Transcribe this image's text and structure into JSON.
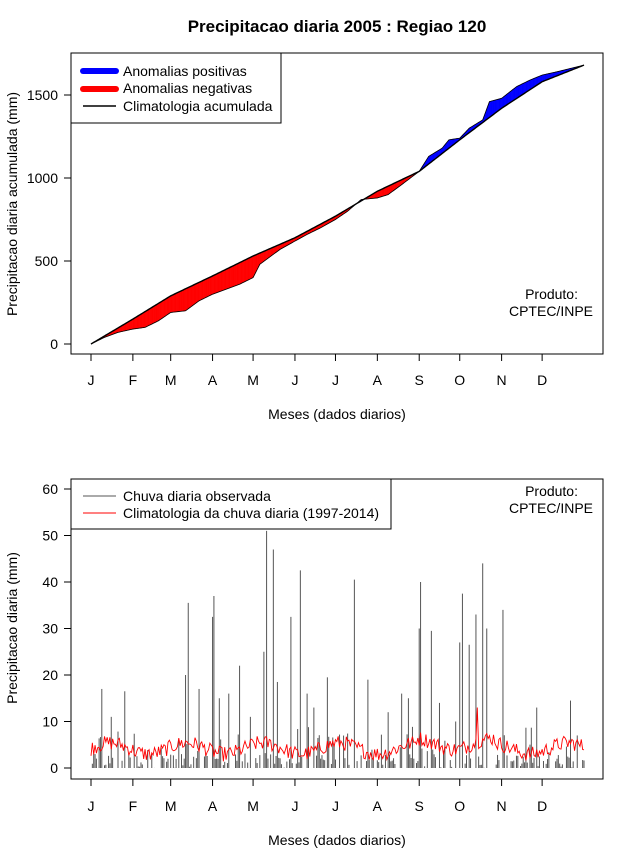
{
  "chart_data": [
    {
      "type": "area",
      "title": "Precipitacao diaria 2005 : Regiao 120",
      "xlabel": "Meses (dados diarios)",
      "ylabel": "Precipitacao diaria acumulada (mm)",
      "xlim": [
        0,
        365
      ],
      "ylim": [
        -50,
        1750
      ],
      "yticks": [
        0,
        500,
        1000,
        1500
      ],
      "month_ticks": [
        "J",
        "F",
        "M",
        "A",
        "M",
        "J",
        "J",
        "A",
        "S",
        "O",
        "N",
        "D"
      ],
      "legend_position": "top-left",
      "legend": [
        {
          "label": "Anomalias positivas",
          "color": "#0000ff",
          "kind": "fill"
        },
        {
          "label": "Anomalias negativas",
          "color": "#ff0000",
          "kind": "fill"
        },
        {
          "label": "Climatologia acumulada",
          "color": "#000000",
          "kind": "line"
        }
      ],
      "product_label": [
        "Produto:",
        "CPTEC/INPE"
      ],
      "climatology_cumulative": {
        "day": [
          0,
          31,
          59,
          90,
          120,
          151,
          181,
          212,
          243,
          273,
          304,
          334,
          365
        ],
        "value": [
          0,
          150,
          290,
          410,
          530,
          640,
          770,
          920,
          1040,
          1230,
          1420,
          1580,
          1680
        ]
      },
      "observed_cumulative": {
        "day": [
          0,
          10,
          20,
          31,
          40,
          50,
          59,
          70,
          80,
          90,
          100,
          110,
          120,
          125,
          140,
          151,
          160,
          170,
          181,
          190,
          200,
          212,
          220,
          230,
          243,
          250,
          260,
          265,
          273,
          280,
          290,
          295,
          304,
          315,
          325,
          334,
          345,
          355,
          365
        ],
        "value": [
          0,
          40,
          70,
          90,
          100,
          140,
          190,
          200,
          260,
          300,
          330,
          360,
          400,
          480,
          570,
          620,
          660,
          700,
          750,
          800,
          870,
          880,
          900,
          960,
          1040,
          1130,
          1180,
          1230,
          1240,
          1300,
          1350,
          1460,
          1480,
          1550,
          1590,
          1620,
          1640,
          1660,
          1680
        ]
      }
    },
    {
      "type": "bar",
      "xlabel": "Meses (dados diarios)",
      "ylabel": "Precipitacao diaria (mm)",
      "xlim": [
        0,
        365
      ],
      "ylim": [
        -2,
        62
      ],
      "yticks": [
        0,
        10,
        20,
        30,
        40,
        50,
        60
      ],
      "month_ticks": [
        "J",
        "F",
        "M",
        "A",
        "M",
        "J",
        "J",
        "A",
        "S",
        "O",
        "N",
        "D"
      ],
      "legend_position": "top-left",
      "legend": [
        {
          "label": "Chuva diaria observada",
          "color": "#555555",
          "kind": "line"
        },
        {
          "label": "Climatologia da chuva diaria (1997-2014)",
          "color": "#ff0000",
          "kind": "line"
        }
      ],
      "product_label": [
        "Produto:",
        "CPTEC/INPE"
      ],
      "observed_daily_peaks": {
        "day": [
          2,
          8,
          15,
          25,
          45,
          70,
          72,
          80,
          90,
          91,
          95,
          102,
          110,
          118,
          128,
          130,
          135,
          138,
          148,
          155,
          160,
          165,
          175,
          195,
          205,
          220,
          230,
          235,
          243,
          244,
          252,
          258,
          270,
          273,
          275,
          280,
          285,
          290,
          293,
          305,
          330,
          355,
          360
        ],
        "value": [
          3,
          17,
          11,
          16.5,
          3,
          20,
          35.5,
          17,
          32.5,
          37,
          15,
          16,
          22,
          11,
          25,
          51,
          47,
          18.5,
          32.5,
          42.5,
          16,
          13,
          19.5,
          40.5,
          19,
          12,
          16,
          15,
          30,
          40,
          29.5,
          14,
          10,
          27,
          37.5,
          26.5,
          33,
          44,
          30,
          34,
          13,
          14.5,
          7
        ]
      },
      "climatology_daily_range": [
        1,
        13
      ]
    }
  ]
}
